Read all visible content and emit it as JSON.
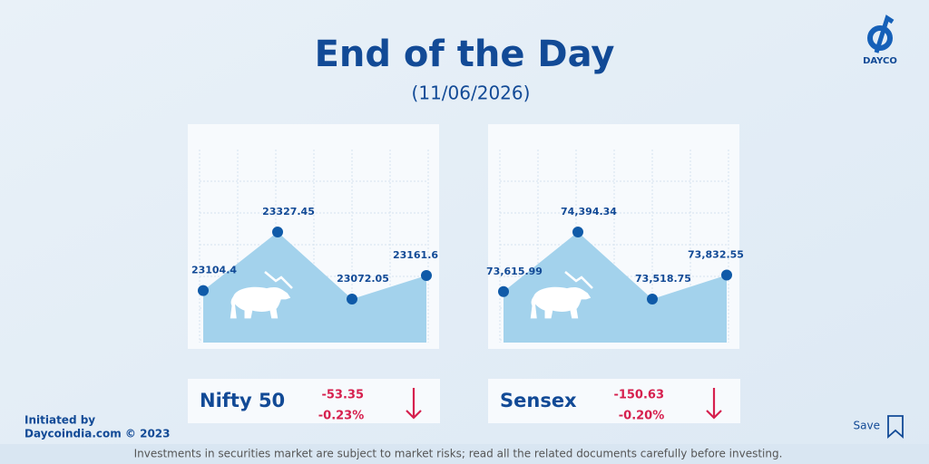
{
  "header": {
    "title": "End of the Day",
    "date": "(11/06/2026)",
    "brand": "DAYCO"
  },
  "chart_data": [
    {
      "type": "area",
      "title": "Nifty 50",
      "color": "#a3d2ec",
      "point_color": "#0f5aa8",
      "values": [
        23104.4,
        23327.45,
        23072.05,
        23161.6
      ],
      "change": "-53.35",
      "change_percent": "-0.23%"
    },
    {
      "type": "area",
      "title": "Sensex",
      "color": "#a3d2ec",
      "point_color": "#0f5aa8",
      "values": [
        73615.99,
        74394.34,
        73518.75,
        73832.55
      ],
      "value_labels": [
        "73,615.99",
        "74,394.34",
        "73,518.75",
        "73,832.55"
      ],
      "change": "-150.63",
      "change_percent": "-0.20%"
    }
  ],
  "footer": {
    "initiated_by": "Initiated by",
    "site": "Daycoindia.com © 2023",
    "save": "Save",
    "disclaimer": "Investments in securities market are subject to market risks; read all the related documents carefully before investing."
  }
}
